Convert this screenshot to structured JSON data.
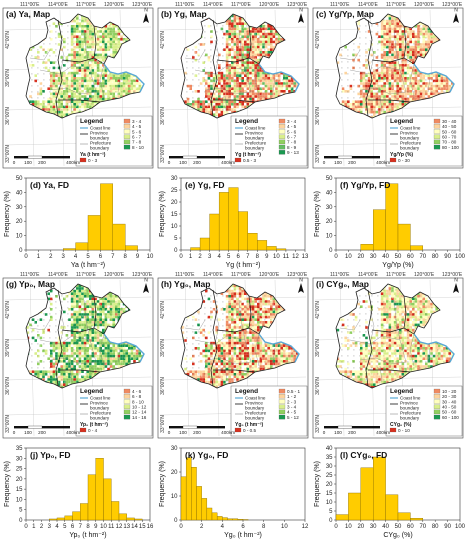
{
  "figure": {
    "colors": {
      "water": "#5aa9d6",
      "bar_fill": "#ffcc00",
      "bar_edge": "#8a6d00",
      "ramp": [
        "#d7301f",
        "#ef8a62",
        "#fdd49e",
        "#ffffbf",
        "#d9ef8b",
        "#91cf60",
        "#1a9850"
      ]
    },
    "icons": [
      "north-arrow-icon",
      "scale-bar-icon"
    ],
    "legend_common": {
      "title": "Legend",
      "coast": "Coast line",
      "province_1": "Province",
      "province_2": "boundary",
      "prefecture_1": "Prefecture",
      "prefecture_2": "boundary"
    },
    "map_axes": {
      "lon_labels": [
        "111°00'E",
        "114°00'E",
        "117°00'E",
        "120°00'E",
        "123°00'E"
      ],
      "lat_labels": [
        "42°00'N",
        "39°00'N",
        "36°00'N",
        "33°00'N"
      ],
      "north": "N",
      "scale_ticks": [
        "0",
        "100",
        "200",
        "400"
      ],
      "scale_unit": "km"
    },
    "panels": [
      {
        "id": "a",
        "title": "(a) Ya, Map",
        "legend_title": "Ya (t hm⁻²)",
        "items": [
          {
            "label": "0 - 3",
            "color": "#d7301f"
          },
          {
            "label": "3 - 4",
            "color": "#ef8a62"
          },
          {
            "label": "4 - 5",
            "color": "#fdd49e"
          },
          {
            "label": "5 - 6",
            "color": "#ffffbf"
          },
          {
            "label": "6 - 7",
            "color": "#d9ef8b"
          },
          {
            "label": "7 - 8",
            "color": "#91cf60"
          },
          {
            "label": "8 - 10",
            "color": "#1a9850"
          }
        ]
      },
      {
        "id": "b",
        "title": "(b) Yg, Map",
        "legend_title": "Yg (t hm⁻²)",
        "items": [
          {
            "label": "0.5 - 3",
            "color": "#d7301f"
          },
          {
            "label": "3 - 4",
            "color": "#ef8a62"
          },
          {
            "label": "4 - 5",
            "color": "#fdd49e"
          },
          {
            "label": "5 - 6",
            "color": "#ffffbf"
          },
          {
            "label": "6 - 7",
            "color": "#d9ef8b"
          },
          {
            "label": "7 - 8",
            "color": "#91cf60"
          },
          {
            "label": "8 - 9",
            "color": "#66bd63"
          },
          {
            "label": "9 - 13",
            "color": "#1a9850"
          }
        ]
      },
      {
        "id": "c",
        "title": "(c) Yg/Yp, Map",
        "legend_title": "Yg/Yp (%)",
        "items": [
          {
            "label": "0 - 30",
            "color": "#d7301f"
          },
          {
            "label": "30 - 40",
            "color": "#ef8a62"
          },
          {
            "label": "40 - 50",
            "color": "#fdd49e"
          },
          {
            "label": "50 - 60",
            "color": "#ffffbf"
          },
          {
            "label": "60 - 70",
            "color": "#d9ef8b"
          },
          {
            "label": "70 - 80",
            "color": "#91cf60"
          },
          {
            "label": "80 - 100",
            "color": "#1a9850"
          }
        ]
      },
      {
        "id": "g",
        "title": "(g) Yp₀, Map",
        "legend_title": "Yp₀ (t hm⁻²)",
        "items": [
          {
            "label": "0 - 4",
            "color": "#d7301f"
          },
          {
            "label": "4 - 6",
            "color": "#ef8a62"
          },
          {
            "label": "6 - 8",
            "color": "#fdd49e"
          },
          {
            "label": "8 - 10",
            "color": "#ffffbf"
          },
          {
            "label": "10 - 12",
            "color": "#d9ef8b"
          },
          {
            "label": "12 - 14",
            "color": "#91cf60"
          },
          {
            "label": "14 - 16",
            "color": "#1a9850"
          }
        ]
      },
      {
        "id": "h",
        "title": "(h) Yg₀, Map",
        "legend_title": "Yg₀ (t hm⁻²)",
        "items": [
          {
            "label": "0 - 0.5",
            "color": "#d7301f"
          },
          {
            "label": "0.5 - 1",
            "color": "#ef8a62"
          },
          {
            "label": "1 - 2",
            "color": "#fdd49e"
          },
          {
            "label": "2 - 3",
            "color": "#ffffbf"
          },
          {
            "label": "3 - 4",
            "color": "#d9ef8b"
          },
          {
            "label": "4 - 5",
            "color": "#91cf60"
          },
          {
            "label": "5 - 12",
            "color": "#1a9850"
          }
        ]
      },
      {
        "id": "i",
        "title": "(i) CYg₀, Map",
        "legend_title": "CYg₀ (%)",
        "items": [
          {
            "label": "0 - 10",
            "color": "#d7301f"
          },
          {
            "label": "10 - 20",
            "color": "#ef8a62"
          },
          {
            "label": "20 - 30",
            "color": "#fdd49e"
          },
          {
            "label": "30 - 40",
            "color": "#ffffbf"
          },
          {
            "label": "40 - 50",
            "color": "#d9ef8b"
          },
          {
            "label": "50 - 60",
            "color": "#91cf60"
          },
          {
            "label": "60 - 100",
            "color": "#1a9850"
          }
        ]
      }
    ]
  },
  "chart_data": [
    {
      "type": "bar",
      "title": "(d) Ya, FD",
      "xlabel": "Ya (t hm⁻²)",
      "ylabel": "Frequency (%)",
      "xlim": [
        0,
        10
      ],
      "ylim": [
        0,
        50
      ],
      "xticks": [
        "0",
        "1",
        "2",
        "3",
        "4",
        "5",
        "6",
        "7",
        "8",
        "9",
        "10"
      ],
      "yticks": [
        "0",
        "10",
        "20",
        "30",
        "40",
        "50"
      ],
      "bins": [
        [
          3,
          4
        ],
        [
          4,
          5
        ],
        [
          5,
          6
        ],
        [
          6,
          7
        ],
        [
          7,
          8
        ],
        [
          8,
          9
        ]
      ],
      "values": [
        1,
        5,
        24,
        46,
        18,
        3
      ]
    },
    {
      "type": "bar",
      "title": "(e) Yg, FD",
      "xlabel": "Yg (t hm⁻²)",
      "ylabel": "Frequency (%)",
      "xlim": [
        0,
        13
      ],
      "ylim": [
        0,
        30
      ],
      "xticks": [
        "0",
        "1",
        "2",
        "3",
        "4",
        "5",
        "6",
        "7",
        "8",
        "9",
        "10",
        "11",
        "12",
        "13"
      ],
      "yticks": [
        "0",
        "5",
        "10",
        "15",
        "20",
        "25",
        "30"
      ],
      "bins": [
        [
          1,
          2
        ],
        [
          2,
          3
        ],
        [
          3,
          4
        ],
        [
          4,
          5
        ],
        [
          5,
          6
        ],
        [
          6,
          7
        ],
        [
          7,
          8
        ],
        [
          8,
          9
        ],
        [
          9,
          10
        ],
        [
          10,
          11
        ]
      ],
      "values": [
        1,
        5,
        15,
        24,
        26,
        16,
        7,
        4,
        1.5,
        0.5
      ]
    },
    {
      "type": "bar",
      "title": "(f) Yg/Yp, FD",
      "xlabel": "Yg/Yp (%)",
      "ylabel": "Frequency (%)",
      "xlim": [
        0,
        100
      ],
      "ylim": [
        0,
        50
      ],
      "xticks": [
        "0",
        "10",
        "20",
        "30",
        "40",
        "50",
        "60",
        "70",
        "80",
        "90",
        "100"
      ],
      "yticks": [
        "0",
        "10",
        "20",
        "30",
        "40",
        "50"
      ],
      "bins": [
        [
          20,
          30
        ],
        [
          30,
          40
        ],
        [
          40,
          50
        ],
        [
          50,
          60
        ],
        [
          60,
          70
        ]
      ],
      "values": [
        4,
        28,
        46,
        18,
        3
      ]
    },
    {
      "type": "bar",
      "title": "(j) Yp₀, FD",
      "xlabel": "Yp₀ (t hm⁻²)",
      "ylabel": "Frequency (%)",
      "xlim": [
        0,
        16
      ],
      "ylim": [
        0,
        35
      ],
      "xticks": [
        "0",
        "1",
        "2",
        "3",
        "4",
        "5",
        "6",
        "7",
        "8",
        "9",
        "10",
        "11",
        "12",
        "13",
        "14",
        "15",
        "16"
      ],
      "yticks": [
        "0",
        "5",
        "10",
        "15",
        "20",
        "25",
        "30",
        "35"
      ],
      "bins": [
        [
          3,
          4
        ],
        [
          4,
          5
        ],
        [
          5,
          6
        ],
        [
          6,
          7
        ],
        [
          7,
          8
        ],
        [
          8,
          9
        ],
        [
          9,
          10
        ],
        [
          10,
          11
        ],
        [
          11,
          12
        ],
        [
          12,
          13
        ],
        [
          13,
          14
        ],
        [
          14,
          15
        ]
      ],
      "values": [
        0.5,
        1,
        2,
        4,
        8,
        22,
        30,
        20,
        9,
        3,
        1,
        0.5
      ]
    },
    {
      "type": "bar",
      "title": "(k) Yg₀, FD",
      "xlabel": "Yg₀ (t hm⁻²)",
      "ylabel": "Frequency (%)",
      "xlim": [
        0,
        12
      ],
      "ylim": [
        0,
        30
      ],
      "xticks": [
        "0",
        "2",
        "4",
        "6",
        "8",
        "10",
        "12"
      ],
      "yticks": [
        "0",
        "10",
        "20",
        "30"
      ],
      "bins": [
        [
          0,
          0.5
        ],
        [
          0.5,
          1
        ],
        [
          1,
          1.5
        ],
        [
          1.5,
          2
        ],
        [
          2,
          2.5
        ],
        [
          2.5,
          3
        ],
        [
          3,
          3.5
        ],
        [
          3.5,
          4
        ],
        [
          4,
          4.5
        ],
        [
          4.5,
          5
        ],
        [
          5,
          5.5
        ],
        [
          5.5,
          6
        ],
        [
          6,
          6.5
        ]
      ],
      "values": [
        18,
        26,
        22,
        14,
        9,
        5,
        3,
        1.5,
        1,
        0.5,
        0.5,
        0.3,
        0.2
      ]
    },
    {
      "type": "bar",
      "title": "(l) CYg₀, FD",
      "xlabel": "CYg₀ (%)",
      "ylabel": "Frequency (%)",
      "xlim": [
        0,
        100
      ],
      "ylim": [
        0,
        40
      ],
      "xticks": [
        "0",
        "10",
        "20",
        "30",
        "40",
        "50",
        "60",
        "70",
        "80",
        "90",
        "100"
      ],
      "yticks": [
        "0",
        "5",
        "10",
        "15",
        "20",
        "25",
        "30",
        "35",
        "40"
      ],
      "bins": [
        [
          0,
          10
        ],
        [
          10,
          20
        ],
        [
          20,
          30
        ],
        [
          30,
          40
        ],
        [
          40,
          50
        ],
        [
          50,
          60
        ],
        [
          60,
          70
        ]
      ],
      "values": [
        3,
        15,
        29,
        35,
        14,
        4,
        1
      ]
    }
  ]
}
